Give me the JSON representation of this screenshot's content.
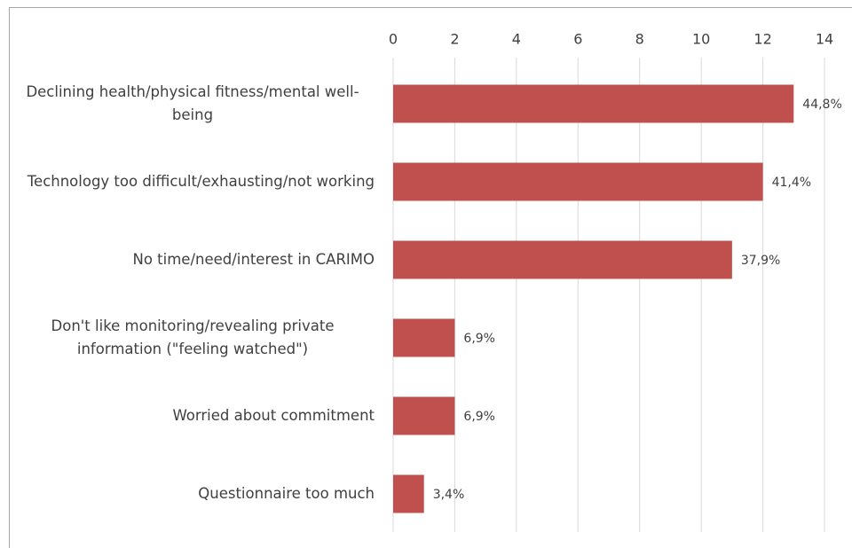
{
  "chart_data": {
    "type": "bar",
    "orientation": "horizontal",
    "categories": [
      "Declining health/physical fitness/mental well-being",
      "Technology too difficult/exhausting/not working",
      "No time/need/interest in CARIMO",
      "Don't like monitoring/revealing private information (\"feeling watched\")",
      "Worried about commitment",
      "Questionnaire too much"
    ],
    "values": [
      13,
      12,
      11,
      2,
      2,
      1
    ],
    "value_labels": [
      "44,8%",
      "41,4%",
      "37,9%",
      "6,9%",
      "6,9%",
      "3,4%"
    ],
    "color": "#c0504d",
    "xlim": [
      0,
      14
    ],
    "xticks": [
      0,
      2,
      4,
      6,
      8,
      10,
      12,
      14
    ],
    "grid": true
  }
}
